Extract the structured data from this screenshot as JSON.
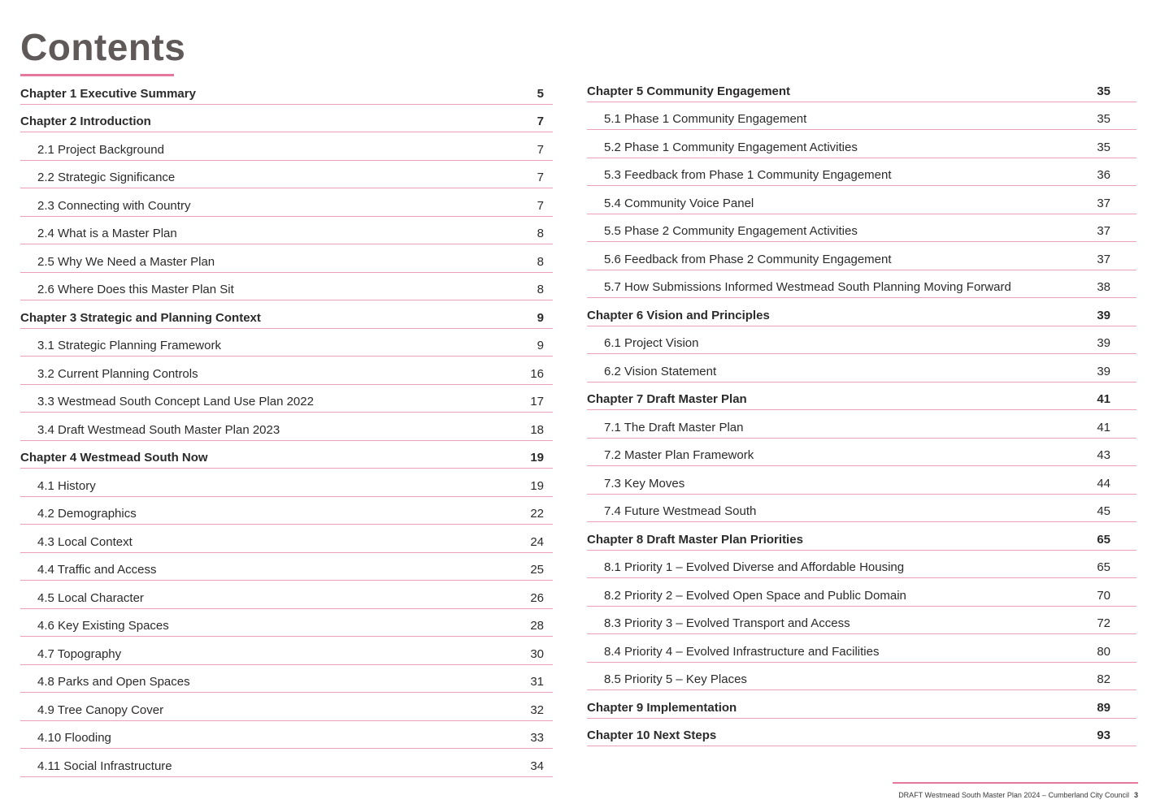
{
  "title": "Contents",
  "left_column": [
    {
      "label": "Chapter 1 Executive Summary",
      "page": "5",
      "level": "chapter"
    },
    {
      "label": "Chapter 2 Introduction",
      "page": "7",
      "level": "chapter"
    },
    {
      "label": "2.1 Project Background",
      "page": "7",
      "level": "section"
    },
    {
      "label": "2.2 Strategic Significance",
      "page": "7",
      "level": "section"
    },
    {
      "label": "2.3 Connecting with Country",
      "page": "7",
      "level": "section"
    },
    {
      "label": "2.4 What is a Master Plan",
      "page": "8",
      "level": "section"
    },
    {
      "label": "2.5 Why We Need a Master Plan",
      "page": "8",
      "level": "section"
    },
    {
      "label": "2.6 Where Does this Master Plan Sit",
      "page": "8",
      "level": "section"
    },
    {
      "label": "Chapter 3 Strategic and Planning Context",
      "page": "9",
      "level": "chapter"
    },
    {
      "label": "3.1 Strategic Planning Framework",
      "page": "9",
      "level": "section"
    },
    {
      "label": "3.2 Current Planning Controls",
      "page": "16",
      "level": "section"
    },
    {
      "label": "3.3 Westmead South Concept Land Use Plan 2022",
      "page": "17",
      "level": "section"
    },
    {
      "label": "3.4 Draft Westmead South Master Plan 2023",
      "page": "18",
      "level": "section"
    },
    {
      "label": "Chapter 4 Westmead South Now",
      "page": "19",
      "level": "chapter"
    },
    {
      "label": "4.1 History",
      "page": "19",
      "level": "section"
    },
    {
      "label": "4.2 Demographics",
      "page": "22",
      "level": "section"
    },
    {
      "label": "4.3 Local Context",
      "page": "24",
      "level": "section"
    },
    {
      "label": "4.4 Traffic and Access",
      "page": "25",
      "level": "section"
    },
    {
      "label": "4.5 Local Character",
      "page": "26",
      "level": "section"
    },
    {
      "label": "4.6 Key Existing Spaces",
      "page": "28",
      "level": "section"
    },
    {
      "label": "4.7 Topography",
      "page": "30",
      "level": "section"
    },
    {
      "label": "4.8 Parks and Open Spaces",
      "page": "31",
      "level": "section"
    },
    {
      "label": "4.9 Tree Canopy Cover",
      "page": "32",
      "level": "section"
    },
    {
      "label": "4.10 Flooding",
      "page": "33",
      "level": "section"
    },
    {
      "label": "4.11 Social Infrastructure",
      "page": "34",
      "level": "section"
    }
  ],
  "right_column": [
    {
      "label": "Chapter 5 Community Engagement",
      "page": "35",
      "level": "chapter"
    },
    {
      "label": "5.1 Phase 1 Community Engagement",
      "page": "35",
      "level": "section"
    },
    {
      "label": "5.2 Phase 1 Community Engagement Activities",
      "page": "35",
      "level": "section"
    },
    {
      "label": "5.3 Feedback from Phase 1 Community Engagement",
      "page": "36",
      "level": "section"
    },
    {
      "label": "5.4 Community Voice Panel",
      "page": "37",
      "level": "section"
    },
    {
      "label": "5.5 Phase 2 Community Engagement Activities",
      "page": "37",
      "level": "section"
    },
    {
      "label": "5.6 Feedback from Phase 2 Community Engagement",
      "page": "37",
      "level": "section"
    },
    {
      "label": "5.7 How Submissions Informed Westmead South Planning Moving Forward",
      "page": "38",
      "level": "section"
    },
    {
      "label": "Chapter 6 Vision and Principles",
      "page": "39",
      "level": "chapter"
    },
    {
      "label": "6.1 Project Vision",
      "page": "39",
      "level": "section"
    },
    {
      "label": "6.2 Vision Statement",
      "page": "39",
      "level": "section"
    },
    {
      "label": "Chapter 7 Draft Master Plan",
      "page": "41",
      "level": "chapter"
    },
    {
      "label": "7.1 The Draft Master Plan",
      "page": "41",
      "level": "section"
    },
    {
      "label": "7.2 Master Plan Framework",
      "page": "43",
      "level": "section"
    },
    {
      "label": "7.3 Key Moves",
      "page": "44",
      "level": "section"
    },
    {
      "label": "7.4 Future Westmead South",
      "page": "45",
      "level": "section"
    },
    {
      "label": "Chapter 8 Draft Master Plan Priorities",
      "page": "65",
      "level": "chapter"
    },
    {
      "label": "8.1 Priority 1 – Evolved Diverse and Affordable Housing",
      "page": "65",
      "level": "section"
    },
    {
      "label": "8.2 Priority 2 – Evolved Open Space and Public Domain",
      "page": "70",
      "level": "section"
    },
    {
      "label": "8.3 Priority 3 – Evolved Transport and Access",
      "page": "72",
      "level": "section"
    },
    {
      "label": "8.4 Priority 4 – Evolved Infrastructure and Facilities",
      "page": "80",
      "level": "section"
    },
    {
      "label": "8.5 Priority 5 – Key Places",
      "page": "82",
      "level": "section"
    },
    {
      "label": "Chapter 9 Implementation",
      "page": "89",
      "level": "chapter"
    },
    {
      "label": "Chapter 10 Next Steps",
      "page": "93",
      "level": "chapter"
    }
  ],
  "footer": {
    "text": "DRAFT Westmead South Master Plan 2024 – Cumberland City Council",
    "page_number": "3"
  },
  "colors": {
    "accent": "#e5789c",
    "rule": "#ec9fba",
    "title": "#5f5959",
    "text": "#2b2b2b"
  }
}
